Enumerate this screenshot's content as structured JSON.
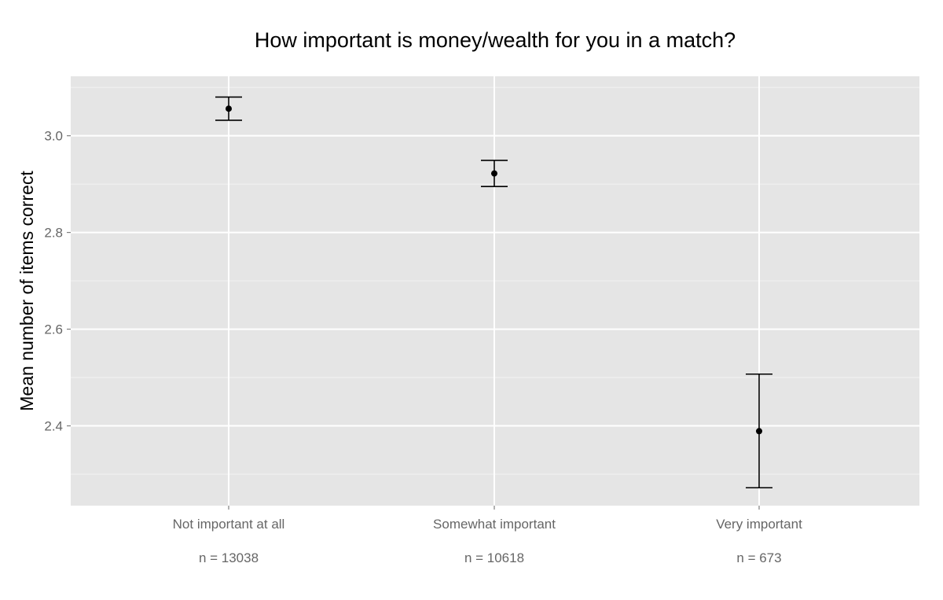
{
  "chart_data": {
    "type": "errorbar",
    "title": "How important is money/wealth for you in a match?",
    "xlabel": "",
    "ylabel": "Mean number of items correct",
    "ylim": [
      2.235,
      3.123
    ],
    "yticks": [
      2.4,
      2.6,
      2.8,
      3.0
    ],
    "ytick_labels": [
      "2.4",
      "2.6",
      "2.8",
      "3.0"
    ],
    "categories": [
      "Not important at all",
      "Somewhat important",
      "Very important"
    ],
    "n_labels": [
      "n = 13038",
      "n = 10618",
      "n = 673"
    ],
    "values": [
      3.056,
      2.922,
      2.389
    ],
    "lower": [
      3.032,
      2.895,
      2.272
    ],
    "upper": [
      3.08,
      2.949,
      2.507
    ],
    "grid": true,
    "legend": "none",
    "colors": {
      "panel": "#e5e5e5",
      "grid_major": "#ffffff",
      "grid_minor": "#f2f2f2",
      "mark": "#000000",
      "tick_text": "#666666"
    }
  }
}
